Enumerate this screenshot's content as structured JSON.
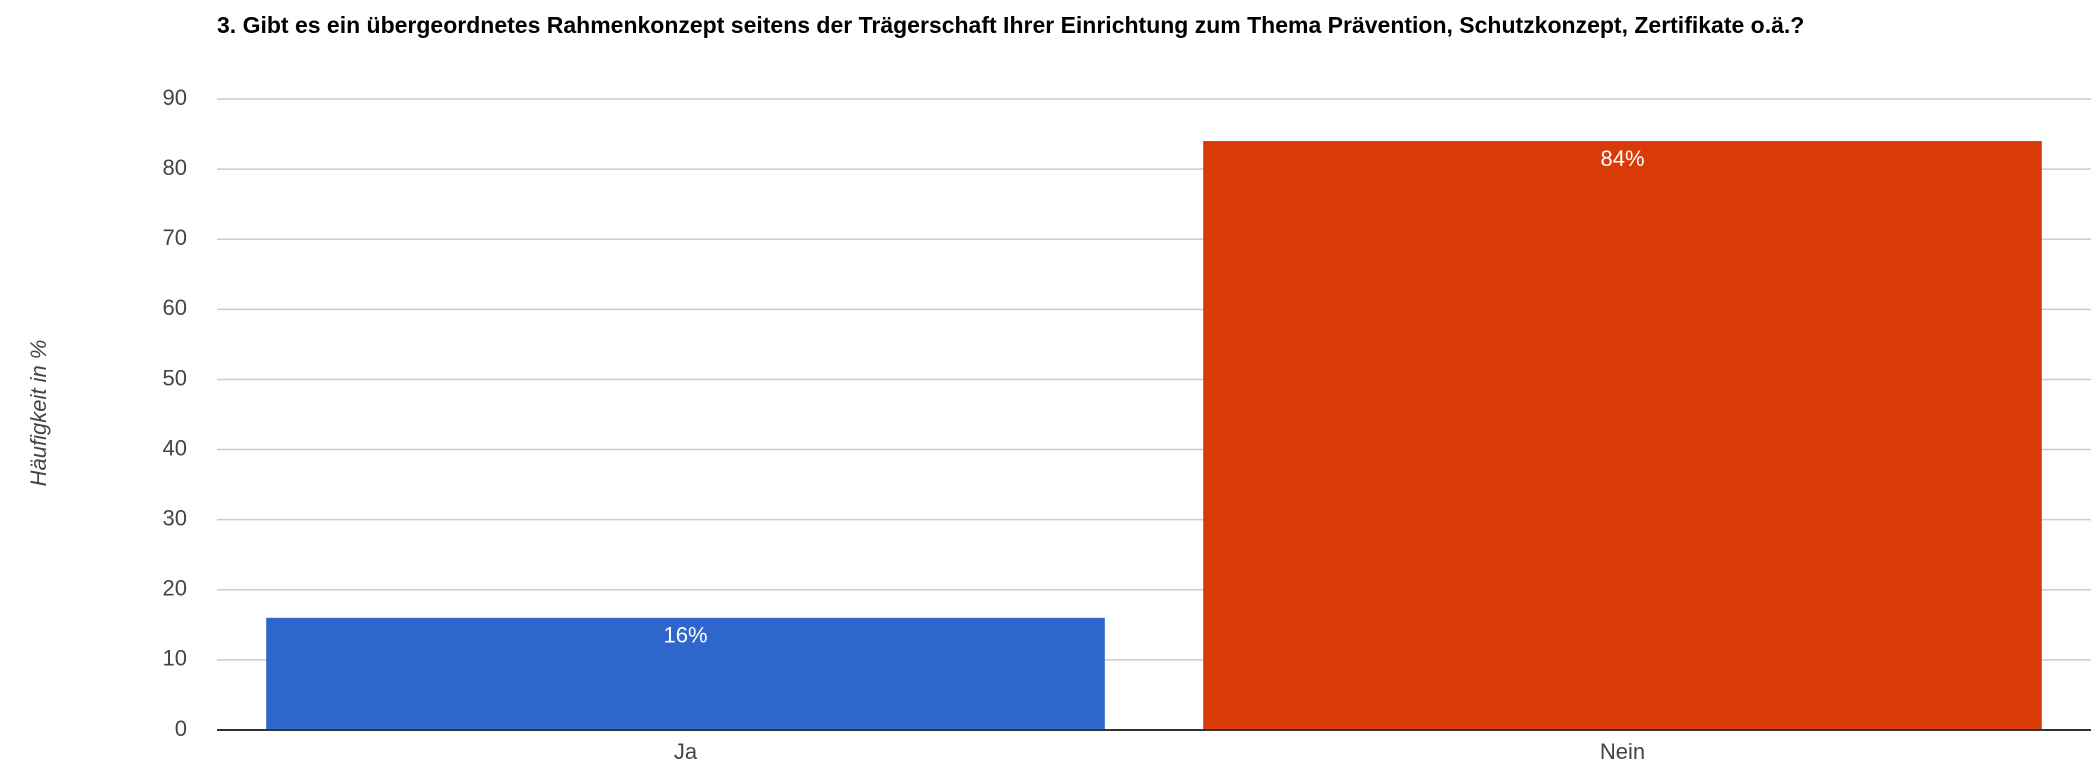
{
  "chart_data": {
    "type": "bar",
    "title": "3. Gibt es ein übergeordnetes Rahmenkonzept seitens der Trägerschaft Ihrer Einrichtung zum Thema Prävention, Schutzkonzept, Zertifikate o.ä.?",
    "y_label": "Häufigkeit in %",
    "categories": [
      "Ja",
      "Nein"
    ],
    "values": [
      16,
      84
    ],
    "value_labels": [
      "16%",
      "84%"
    ],
    "colors": [
      "#2e66cc",
      "#d83a08"
    ],
    "ylim": [
      0,
      90
    ],
    "yticks": [
      0,
      10,
      20,
      30,
      40,
      50,
      60,
      70,
      80,
      90
    ],
    "grid": true
  }
}
